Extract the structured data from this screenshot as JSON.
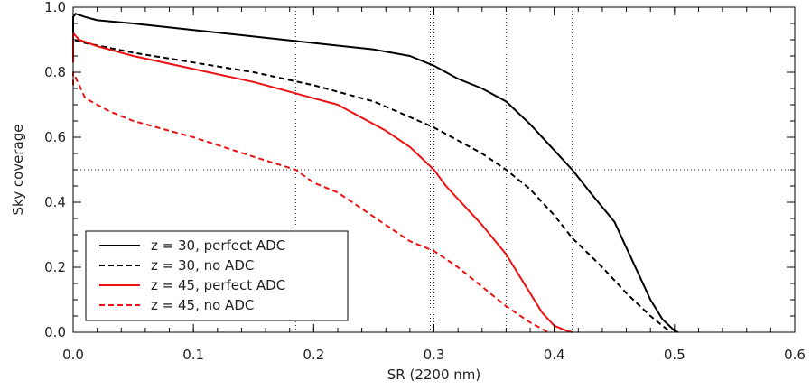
{
  "chart_data": {
    "type": "line",
    "xlabel": "SR (2200 nm)",
    "ylabel": "Sky coverage",
    "xlim": [
      0.0,
      0.6
    ],
    "ylim": [
      0.0,
      1.0
    ],
    "xticks": [
      0.0,
      0.1,
      0.2,
      0.3,
      0.4,
      0.5,
      0.6
    ],
    "yticks": [
      0.0,
      0.2,
      0.4,
      0.6,
      0.8,
      1.0
    ],
    "xtick_labels": [
      "0.0",
      "0.1",
      "0.2",
      "0.3",
      "0.4",
      "0.5",
      "0.6"
    ],
    "ytick_labels": [
      "0.0",
      "0.2",
      "0.4",
      "0.6",
      "0.8",
      "1.0"
    ],
    "grid": false,
    "legend_position": "bottom-left",
    "reference_lines": {
      "horizontal": [
        0.5
      ],
      "vertical": [
        0.185,
        0.297,
        0.3,
        0.36,
        0.415
      ]
    },
    "series": [
      {
        "name": "z = 30, perfect ADC",
        "color": "#000000",
        "dash": "solid",
        "x": [
          0.0,
          0.0,
          0.002,
          0.01,
          0.02,
          0.05,
          0.1,
          0.15,
          0.2,
          0.25,
          0.28,
          0.3,
          0.32,
          0.34,
          0.36,
          0.38,
          0.4,
          0.415,
          0.43,
          0.45,
          0.46,
          0.47,
          0.48,
          0.49,
          0.5,
          0.503
        ],
        "y": [
          0.89,
          0.97,
          0.98,
          0.97,
          0.96,
          0.95,
          0.93,
          0.91,
          0.89,
          0.87,
          0.85,
          0.82,
          0.78,
          0.75,
          0.71,
          0.64,
          0.56,
          0.5,
          0.43,
          0.34,
          0.26,
          0.18,
          0.1,
          0.04,
          0.005,
          0.0
        ]
      },
      {
        "name": "z = 30, no ADC",
        "color": "#000000",
        "dash": "dashed",
        "x": [
          0.0,
          0.0,
          0.01,
          0.05,
          0.1,
          0.15,
          0.2,
          0.25,
          0.3,
          0.32,
          0.34,
          0.36,
          0.38,
          0.4,
          0.415,
          0.44,
          0.46,
          0.48,
          0.49,
          0.497
        ],
        "y": [
          0.85,
          0.9,
          0.89,
          0.86,
          0.83,
          0.8,
          0.76,
          0.71,
          0.63,
          0.59,
          0.55,
          0.5,
          0.44,
          0.36,
          0.29,
          0.2,
          0.12,
          0.05,
          0.02,
          0.0
        ]
      },
      {
        "name": "z = 45, perfect ADC",
        "color": "#ee1111",
        "dash": "solid",
        "x": [
          0.0,
          0.0,
          0.005,
          0.02,
          0.05,
          0.1,
          0.15,
          0.2,
          0.22,
          0.24,
          0.26,
          0.28,
          0.3,
          0.31,
          0.32,
          0.34,
          0.36,
          0.38,
          0.39,
          0.4,
          0.41,
          0.415
        ],
        "y": [
          0.83,
          0.92,
          0.9,
          0.88,
          0.85,
          0.81,
          0.77,
          0.72,
          0.7,
          0.66,
          0.62,
          0.57,
          0.5,
          0.45,
          0.41,
          0.33,
          0.24,
          0.12,
          0.06,
          0.02,
          0.005,
          0.0
        ]
      },
      {
        "name": "z = 45, no ADC",
        "color": "#ee1111",
        "dash": "dashed",
        "x": [
          0.0,
          0.0,
          0.01,
          0.03,
          0.05,
          0.08,
          0.1,
          0.15,
          0.185,
          0.2,
          0.22,
          0.24,
          0.26,
          0.28,
          0.3,
          0.32,
          0.34,
          0.36,
          0.38,
          0.39,
          0.395
        ],
        "y": [
          0.76,
          0.8,
          0.72,
          0.68,
          0.65,
          0.62,
          0.6,
          0.54,
          0.5,
          0.46,
          0.43,
          0.38,
          0.33,
          0.28,
          0.25,
          0.2,
          0.14,
          0.08,
          0.03,
          0.01,
          0.0
        ]
      }
    ]
  }
}
